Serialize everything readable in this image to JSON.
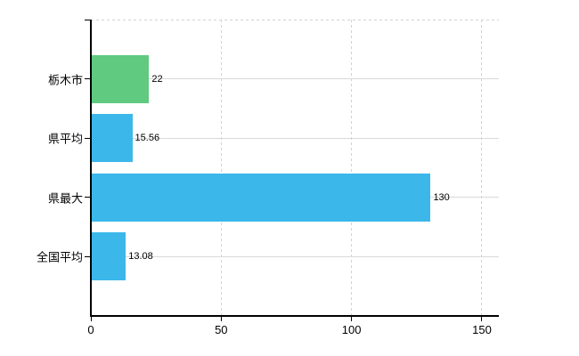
{
  "chart_data": {
    "type": "bar",
    "orientation": "horizontal",
    "title": "",
    "xlabel": "",
    "ylabel": "",
    "categories": [
      "栃木市",
      "県平均",
      "県最大",
      "全国平均"
    ],
    "values": [
      22,
      15.56,
      130,
      13.08
    ],
    "value_labels": [
      "22",
      "15.56",
      "130",
      "13.08"
    ],
    "bar_colors": [
      "#5fca80",
      "#3cb7ea",
      "#3cb7ea",
      "#3cb7ea"
    ],
    "x_ticks": [
      0,
      50,
      100,
      150
    ],
    "x_tick_labels": [
      "0",
      "50",
      "100",
      "150"
    ],
    "xlim": [
      0,
      156.5
    ],
    "grid": {
      "vertical_style": "dashed",
      "horizontal_style": "solid",
      "color": "#d9d9d9"
    },
    "legend": "none",
    "colors": {
      "axis": "#000000",
      "text": "#000000",
      "background": "#ffffff",
      "green_bar": "#5fca80",
      "blue_bar": "#3cb7ea"
    }
  }
}
